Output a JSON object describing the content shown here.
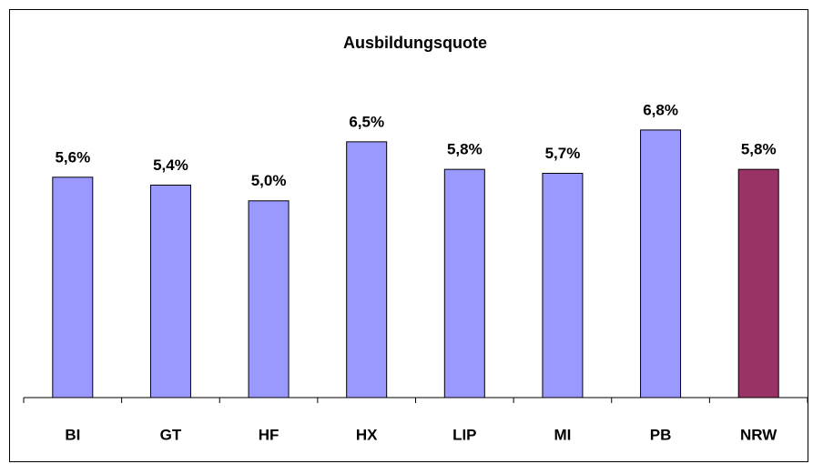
{
  "chart_data": {
    "type": "bar",
    "title": "Ausbildungsquote",
    "categories": [
      "BI",
      "GT",
      "HF",
      "HX",
      "LIP",
      "MI",
      "PB",
      "NRW"
    ],
    "values": [
      5.6,
      5.4,
      5.0,
      6.5,
      5.8,
      5.7,
      6.8,
      5.8
    ],
    "value_labels": [
      "5,6%",
      "5,4%",
      "5,0%",
      "6,5%",
      "5,8%",
      "5,7%",
      "6,8%",
      "5,8%"
    ],
    "colors": [
      "#9999ff",
      "#9999ff",
      "#9999ff",
      "#9999ff",
      "#9999ff",
      "#9999ff",
      "#9999ff",
      "#993366"
    ],
    "ylim": [
      0,
      8
    ]
  }
}
